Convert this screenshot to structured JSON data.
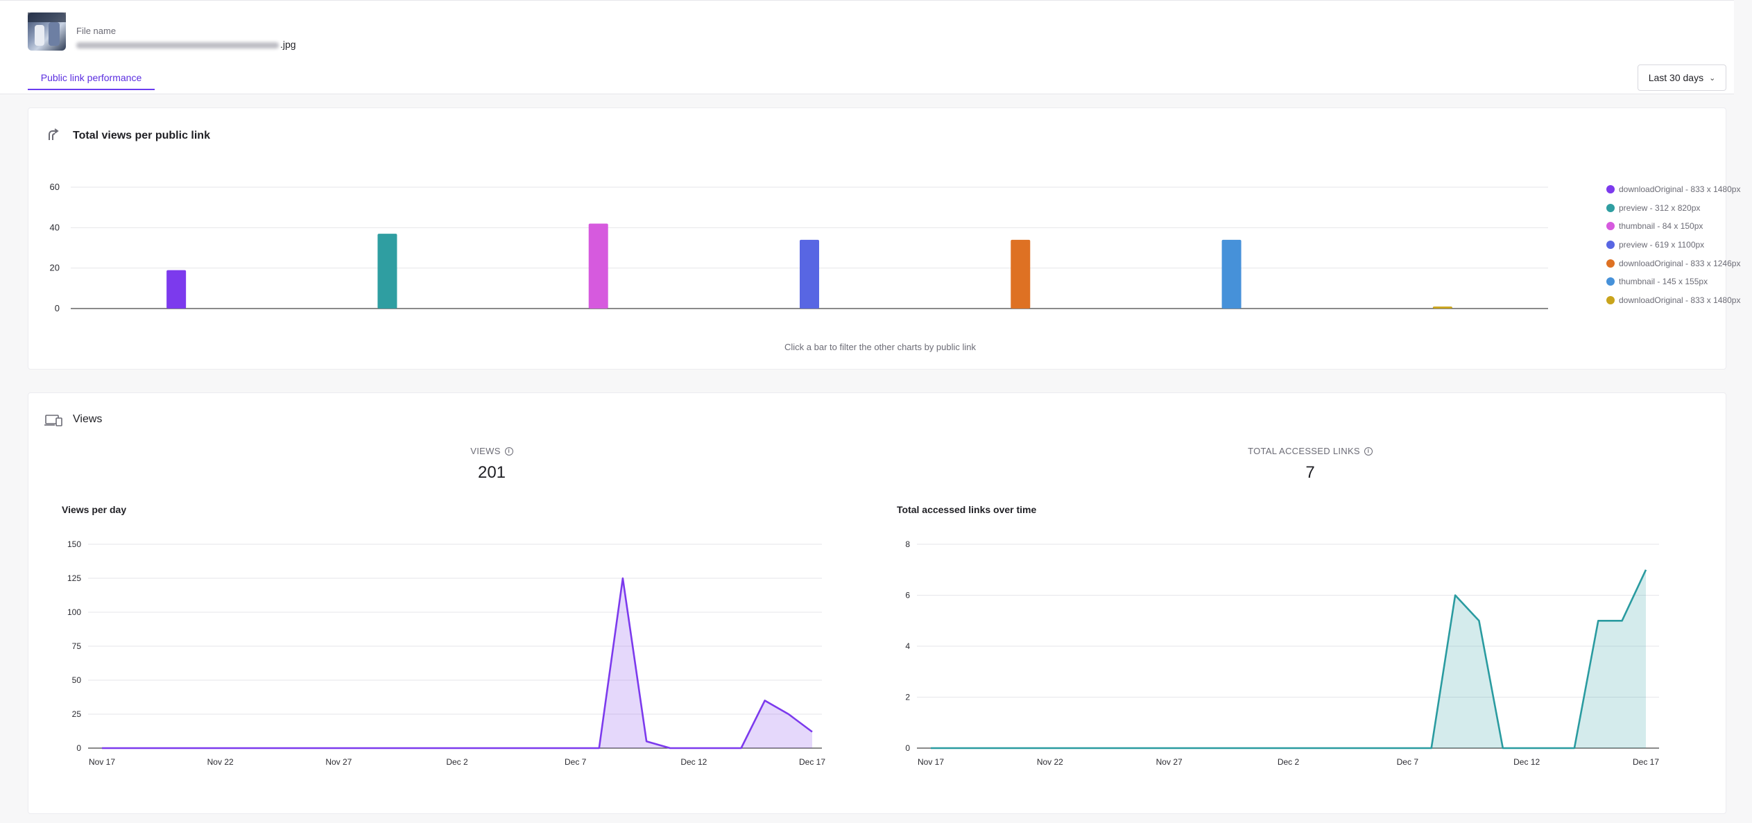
{
  "header": {
    "file_name_label": "File name",
    "file_name_suffix": ".jpg",
    "tab_label": "Public link performance",
    "date_range": "Last 30 days"
  },
  "colors": {
    "accent": "#6a3bf0",
    "views_line": "#7c3aed",
    "links_line": "#2a9ba0"
  },
  "icons": {
    "views_per_link": "share-arrow-icon",
    "views_section": "devices-icon",
    "info": "info-icon",
    "chevron": "chevron-down-icon"
  },
  "views_per_link": {
    "title": "Total views per public link",
    "hint": "Click a bar to filter the other charts by public link",
    "chart_data": {
      "type": "bar",
      "categories": [
        "downloadOriginal - 833 x 1480px",
        "preview - 312 x 820px",
        "thumbnail - 84 x 150px",
        "preview - 619 x 1100px",
        "downloadOriginal - 833 x 1246px",
        "thumbnail - 145 x 155px",
        "downloadOriginal - 833 x 1480px"
      ],
      "values": [
        19,
        37,
        42,
        34,
        34,
        34,
        1
      ],
      "colors": [
        "#7c3aed",
        "#2f9ea1",
        "#d65ade",
        "#5866e3",
        "#de7123",
        "#4691d9",
        "#c9a41c"
      ],
      "ylim": [
        0,
        60
      ],
      "yticks": [
        "0",
        "20",
        "40",
        "60"
      ],
      "grid": true,
      "legend": "right"
    }
  },
  "views_section": {
    "title": "Views",
    "kpi_views": {
      "label": "VIEWS",
      "value": "201"
    },
    "kpi_links": {
      "label": "TOTAL ACCESSED LINKS",
      "value": "7"
    },
    "views_per_day": {
      "title": "Views per day",
      "chart_data": {
        "type": "area",
        "x": [
          "Nov 17",
          "Nov 18",
          "Nov 19",
          "Nov 20",
          "Nov 21",
          "Nov 22",
          "Nov 23",
          "Nov 24",
          "Nov 25",
          "Nov 26",
          "Nov 27",
          "Nov 28",
          "Nov 29",
          "Nov 30",
          "Dec 1",
          "Dec 2",
          "Dec 3",
          "Dec 4",
          "Dec 5",
          "Dec 6",
          "Dec 7",
          "Dec 8",
          "Dec 9",
          "Dec 10",
          "Dec 11",
          "Dec 12",
          "Dec 13",
          "Dec 14",
          "Dec 15",
          "Dec 16",
          "Dec 17"
        ],
        "values": [
          0,
          0,
          0,
          0,
          0,
          0,
          0,
          0,
          0,
          0,
          0,
          0,
          0,
          0,
          0,
          0,
          0,
          0,
          0,
          0,
          0,
          0,
          125,
          5,
          0,
          0,
          0,
          0,
          35,
          25,
          12
        ],
        "xticks": [
          "Nov 17",
          "Nov 22",
          "Nov 27",
          "Dec 2",
          "Dec 7",
          "Dec 12",
          "Dec 17"
        ],
        "ylim": [
          0,
          150
        ],
        "yticks": [
          "0",
          "25",
          "50",
          "75",
          "100",
          "125",
          "150"
        ],
        "grid": true
      }
    },
    "links_over_time": {
      "title": "Total accessed links over time",
      "chart_data": {
        "type": "area",
        "x": [
          "Nov 17",
          "Nov 18",
          "Nov 19",
          "Nov 20",
          "Nov 21",
          "Nov 22",
          "Nov 23",
          "Nov 24",
          "Nov 25",
          "Nov 26",
          "Nov 27",
          "Nov 28",
          "Nov 29",
          "Nov 30",
          "Dec 1",
          "Dec 2",
          "Dec 3",
          "Dec 4",
          "Dec 5",
          "Dec 6",
          "Dec 7",
          "Dec 8",
          "Dec 9",
          "Dec 10",
          "Dec 11",
          "Dec 12",
          "Dec 13",
          "Dec 14",
          "Dec 15",
          "Dec 16",
          "Dec 17"
        ],
        "values": [
          0,
          0,
          0,
          0,
          0,
          0,
          0,
          0,
          0,
          0,
          0,
          0,
          0,
          0,
          0,
          0,
          0,
          0,
          0,
          0,
          0,
          0,
          6,
          5,
          0,
          0,
          0,
          0,
          5,
          5,
          7
        ],
        "xticks": [
          "Nov 17",
          "Nov 22",
          "Nov 27",
          "Dec 2",
          "Dec 7",
          "Dec 12",
          "Dec 17"
        ],
        "ylim": [
          0,
          8
        ],
        "yticks": [
          "0",
          "2",
          "4",
          "6",
          "8"
        ],
        "grid": true
      }
    }
  }
}
